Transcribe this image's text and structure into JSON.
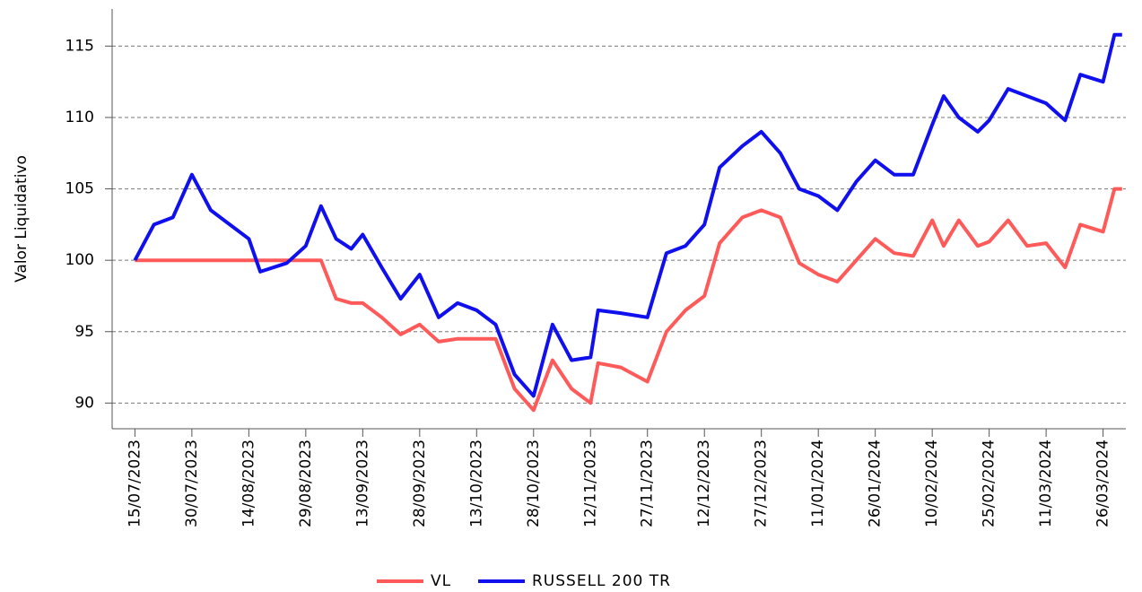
{
  "chart_data": {
    "type": "line",
    "ylabel": "Valor Liquidativo",
    "x": [
      "15/07/2023",
      "20/07/2023",
      "25/07/2023",
      "30/07/2023",
      "04/08/2023",
      "09/08/2023",
      "14/08/2023",
      "17/08/2023",
      "24/08/2023",
      "29/08/2023",
      "02/09/2023",
      "06/09/2023",
      "10/09/2023",
      "13/09/2023",
      "18/09/2023",
      "23/09/2023",
      "28/09/2023",
      "03/10/2023",
      "08/10/2023",
      "13/10/2023",
      "18/10/2023",
      "23/10/2023",
      "28/10/2023",
      "02/11/2023",
      "07/11/2023",
      "12/11/2023",
      "14/11/2023",
      "20/11/2023",
      "27/11/2023",
      "02/12/2023",
      "07/12/2023",
      "12/12/2023",
      "16/12/2023",
      "22/12/2023",
      "27/12/2023",
      "01/01/2024",
      "06/01/2024",
      "11/01/2024",
      "16/01/2024",
      "21/01/2024",
      "26/01/2024",
      "31/01/2024",
      "05/02/2024",
      "10/02/2024",
      "13/02/2024",
      "17/02/2024",
      "22/02/2024",
      "25/02/2024",
      "01/03/2024",
      "06/03/2024",
      "11/03/2024",
      "16/03/2024",
      "20/03/2024",
      "26/03/2024",
      "29/03/2024",
      "31/03/2024"
    ],
    "series": [
      {
        "name": "VL",
        "color": "#ff5a5a",
        "values": [
          100,
          100,
          100,
          100,
          100,
          100,
          100,
          100,
          100,
          100,
          100,
          97.3,
          97,
          97,
          96,
          94.8,
          95.5,
          94.3,
          94.5,
          94.5,
          94.5,
          91,
          89.5,
          93,
          91,
          90,
          92.8,
          92.5,
          91.5,
          95,
          96.5,
          97.5,
          101.2,
          103,
          103.5,
          103,
          99.8,
          99,
          98.5,
          100,
          101.5,
          100.5,
          100.3,
          102.8,
          101,
          102.8,
          101,
          101.3,
          102.8,
          101,
          101.2,
          99.5,
          102.5,
          102,
          105,
          105
        ]
      },
      {
        "name": "RUSSELL 200 TR",
        "color": "#1010ee",
        "values": [
          100,
          102.5,
          103,
          106,
          103.5,
          102.5,
          101.5,
          99.2,
          99.8,
          101,
          103.8,
          101.5,
          100.8,
          101.8,
          99.5,
          97.3,
          99,
          96,
          97,
          96.5,
          95.5,
          92,
          90.5,
          95.5,
          93,
          93.2,
          96.5,
          96.3,
          96,
          100.5,
          101,
          102.5,
          106.5,
          108,
          109,
          107.5,
          105,
          104.5,
          103.5,
          105.5,
          107,
          106,
          106,
          109.5,
          111.5,
          110,
          109,
          109.8,
          112,
          111.5,
          111,
          109.8,
          113,
          112.5,
          115.8,
          115.8
        ]
      }
    ],
    "xlim": [
      "09/07/2023",
      "01/04/2024"
    ],
    "xticks": [
      "15/07/2023",
      "30/07/2023",
      "14/08/2023",
      "29/08/2023",
      "13/09/2023",
      "28/09/2023",
      "13/10/2023",
      "28/10/2023",
      "12/11/2023",
      "27/11/2023",
      "12/12/2023",
      "27/12/2023",
      "11/01/2024",
      "26/01/2024",
      "10/02/2024",
      "25/02/2024",
      "11/03/2024",
      "26/03/2024"
    ],
    "ylim": [
      88.2,
      117.6
    ],
    "yticks": [
      90,
      95,
      100,
      105,
      110,
      115
    ],
    "grid": true,
    "legend": "bottom"
  }
}
